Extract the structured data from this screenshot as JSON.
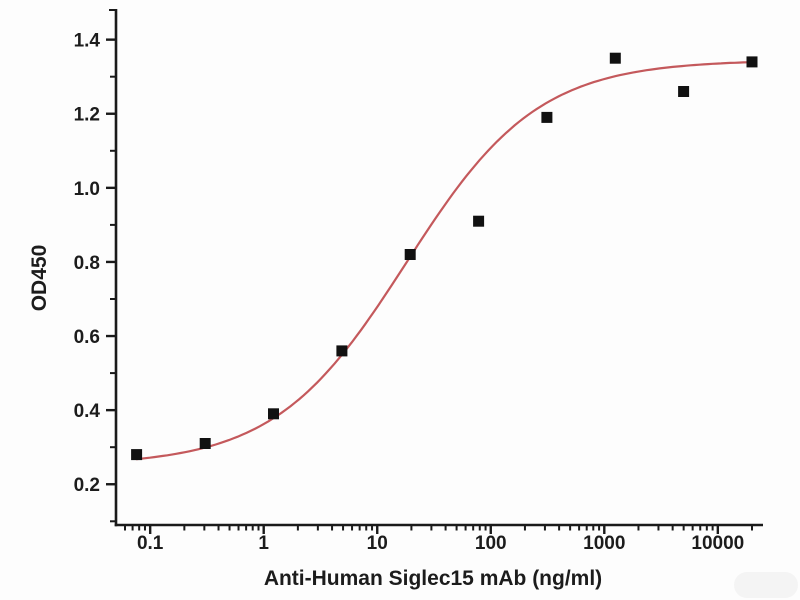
{
  "chart_data": {
    "type": "scatter",
    "title": "",
    "xlabel": "Anti-Human Siglec15 mAb (ng/ml)",
    "ylabel": "OD450",
    "x_scale": "log",
    "grid": false,
    "legend": null,
    "xlim": [
      0.05,
      25000
    ],
    "ylim": [
      0.09,
      1.48
    ],
    "x_major_ticks": [
      0.1,
      1,
      10,
      100,
      1000,
      10000
    ],
    "x_tick_labels": [
      "0.1",
      "1",
      "10",
      "100",
      "1000",
      "10000"
    ],
    "y_major_ticks": [
      0.2,
      0.4,
      0.6,
      0.8,
      1.0,
      1.2,
      1.4
    ],
    "y_tick_labels": [
      "0.2",
      "0.4",
      "0.6",
      "0.8",
      "1.0",
      "1.2",
      "1.4"
    ],
    "y_minor_step": 0.1,
    "x": [
      0.076,
      0.305,
      1.22,
      4.88,
      19.5,
      78.1,
      312.5,
      1250,
      5000,
      20000
    ],
    "y": [
      0.28,
      0.31,
      0.39,
      0.56,
      0.82,
      0.91,
      1.19,
      1.35,
      1.26,
      1.34
    ],
    "fit_curve": {
      "model": "4PL",
      "bottom": 0.25,
      "top": 1.345,
      "ec50": 18,
      "hill": 0.75,
      "x_start": 0.076,
      "x_end": 20000
    },
    "marker": {
      "shape": "square",
      "color": "#111111",
      "size": 11
    },
    "line_color": "#c4595c",
    "axis_color": "#1a1a1a",
    "text_color": "#1c1c1c",
    "background": "#fdfdfd"
  }
}
